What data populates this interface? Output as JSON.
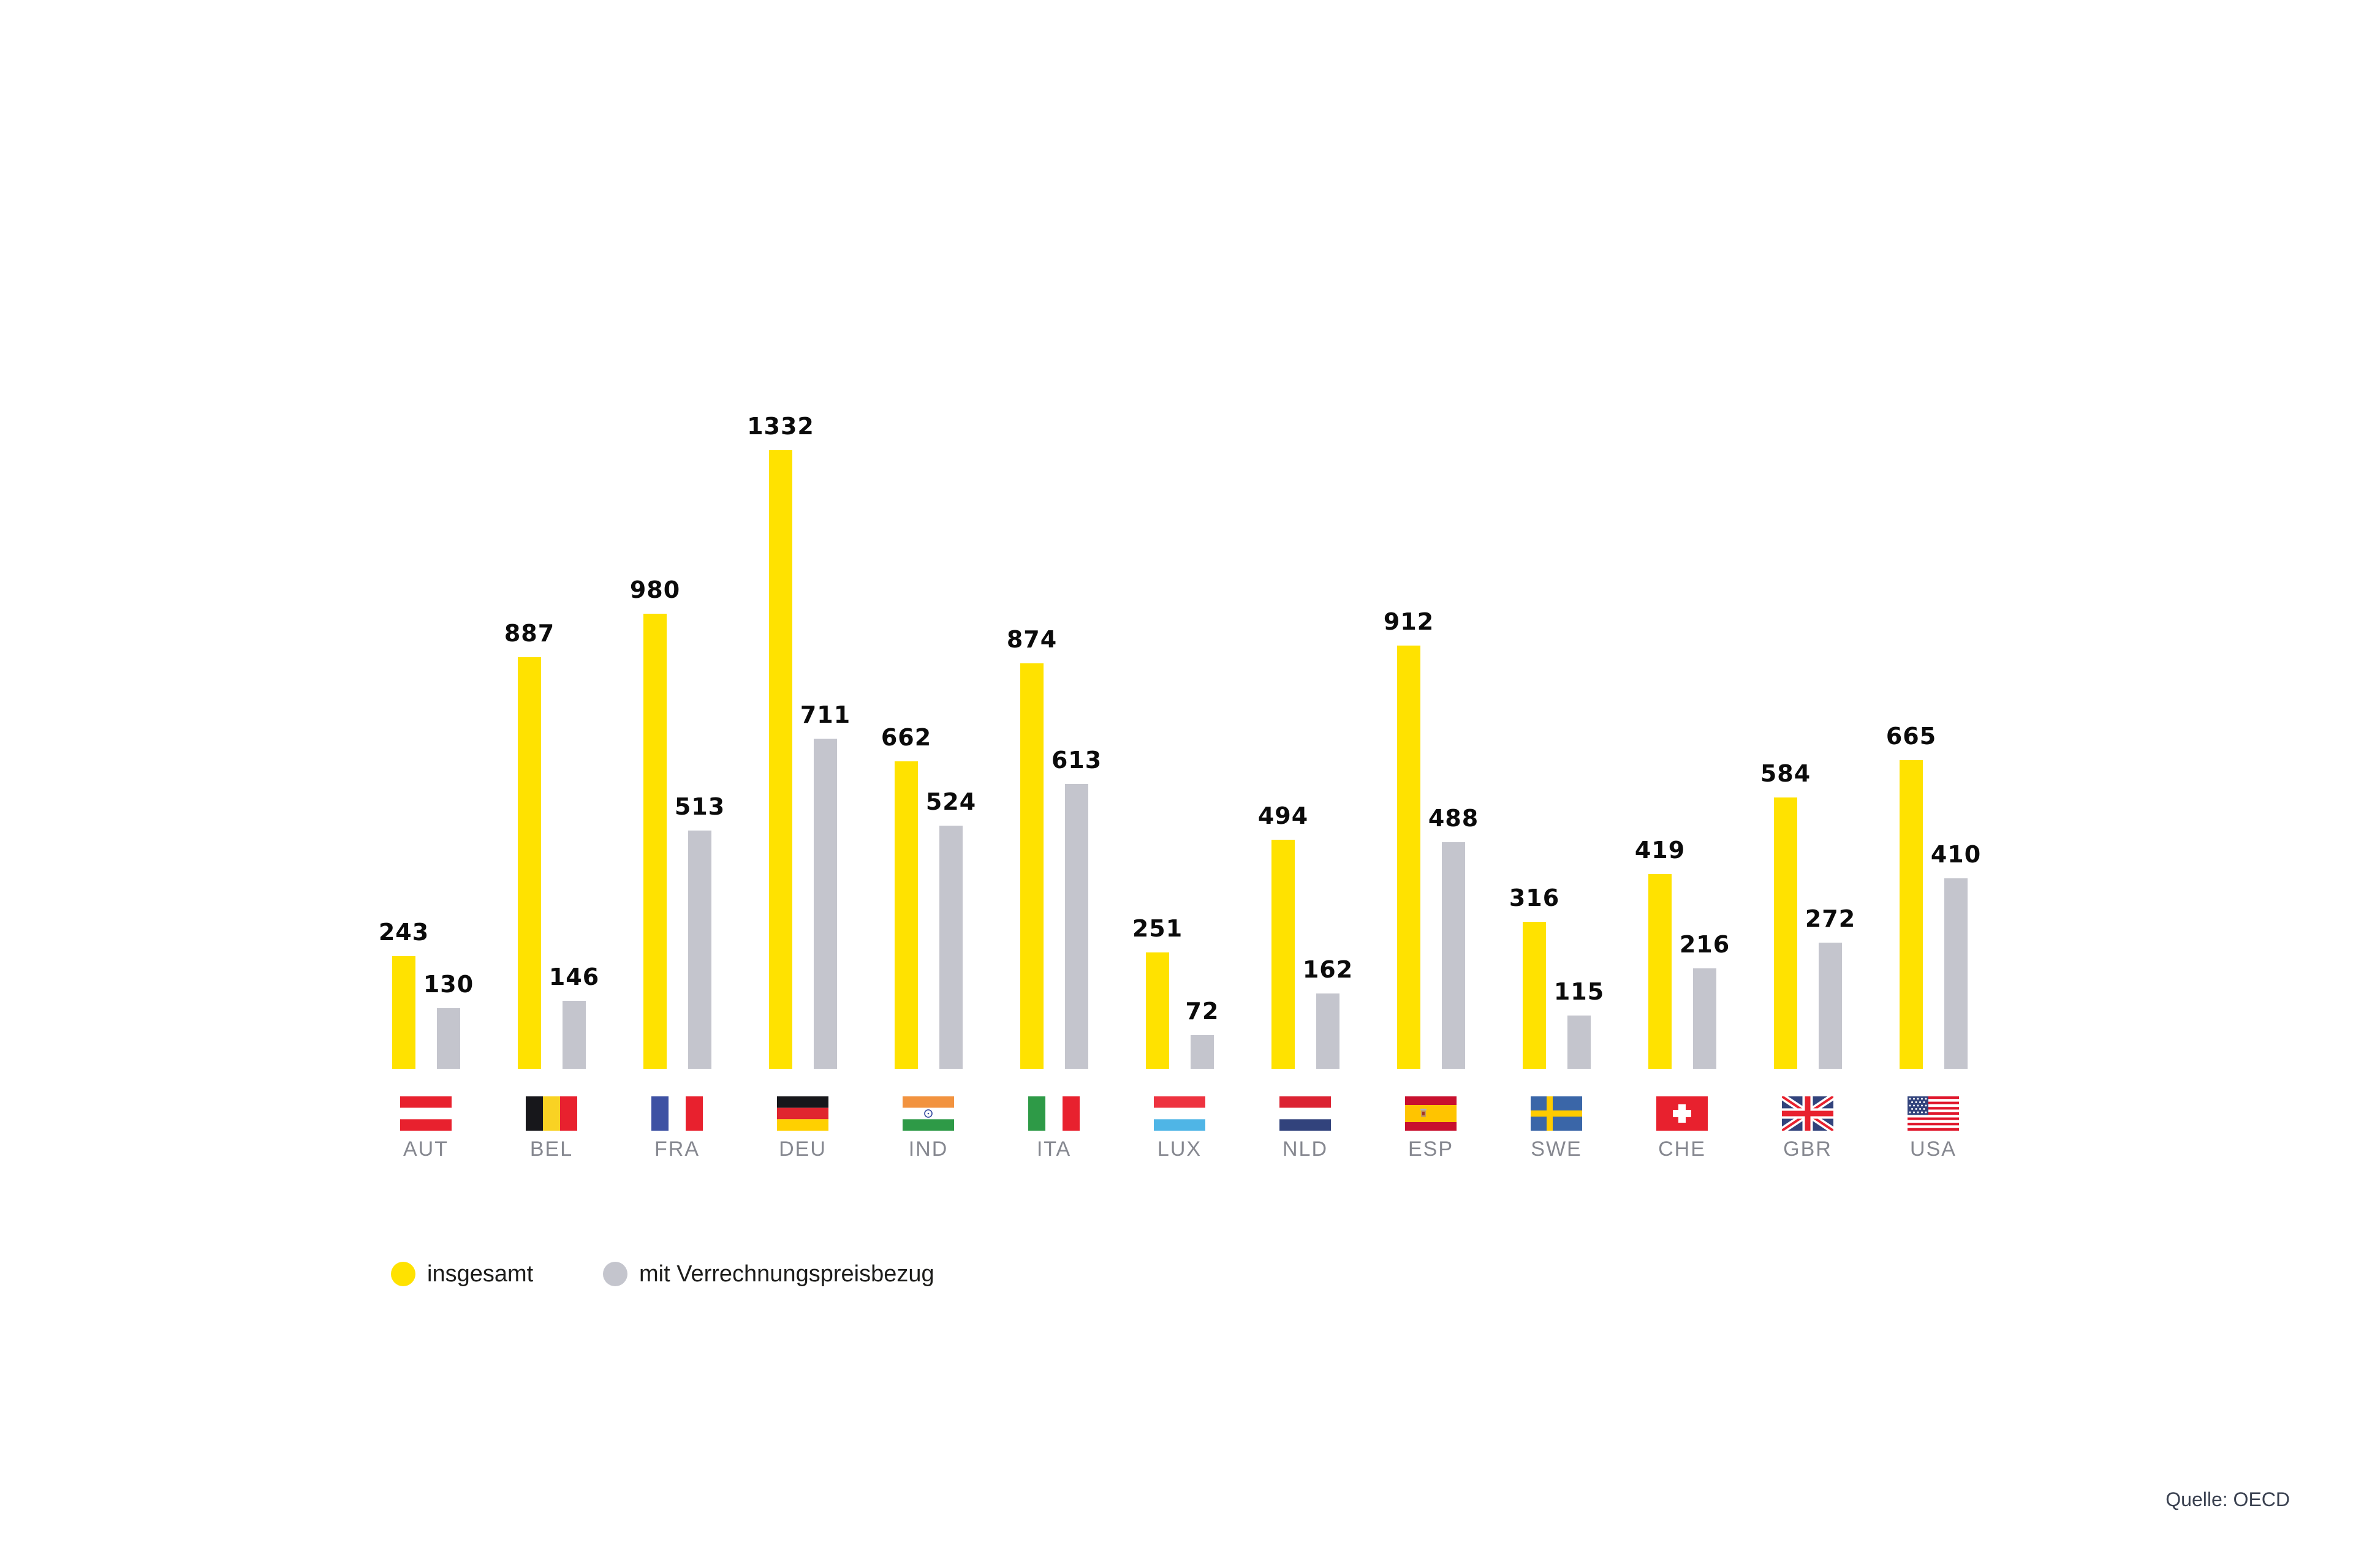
{
  "page": {
    "background": "#FFFFFF",
    "source_label": "Quelle: OECD",
    "source_color": "#3A4150"
  },
  "legend": {
    "items": [
      {
        "label": "insgesamt",
        "color": "#FFE200",
        "marker": "circle"
      },
      {
        "label": "mit Verrechnungspreisbezug",
        "color": "#C4C5CD",
        "marker": "circle"
      }
    ]
  },
  "chart_data": {
    "type": "bar",
    "title": "",
    "categories": [
      "AUT",
      "BEL",
      "FRA",
      "DEU",
      "IND",
      "ITA",
      "LUX",
      "NLD",
      "ESP",
      "SWE",
      "CHE",
      "GBR",
      "USA"
    ],
    "category_icons": [
      "austria-flag",
      "belgium-flag",
      "france-flag",
      "germany-flag",
      "india-flag",
      "italy-flag",
      "luxembourg-flag",
      "netherlands-flag",
      "spain-flag",
      "sweden-flag",
      "switzerland-flag",
      "united-kingdom-flag",
      "usa-flag"
    ],
    "series": [
      {
        "name": "insgesamt",
        "color": "#FFE200",
        "values": [
          243,
          887,
          980,
          1332,
          662,
          874,
          251,
          494,
          912,
          316,
          419,
          584,
          665
        ]
      },
      {
        "name": "mit Verrechnungspreisbezug",
        "color": "#C4C5CD",
        "values": [
          130,
          146,
          513,
          711,
          524,
          613,
          72,
          162,
          488,
          115,
          216,
          272,
          410
        ]
      }
    ],
    "value_labels_shown": true,
    "axes_shown": false,
    "gridlines_shown": false,
    "ylim": [
      0,
      1400
    ],
    "legend_position": "bottom-left",
    "value_label_color": "#0B0B0B",
    "category_label_color": "#85878F",
    "source": "Quelle: OECD"
  }
}
